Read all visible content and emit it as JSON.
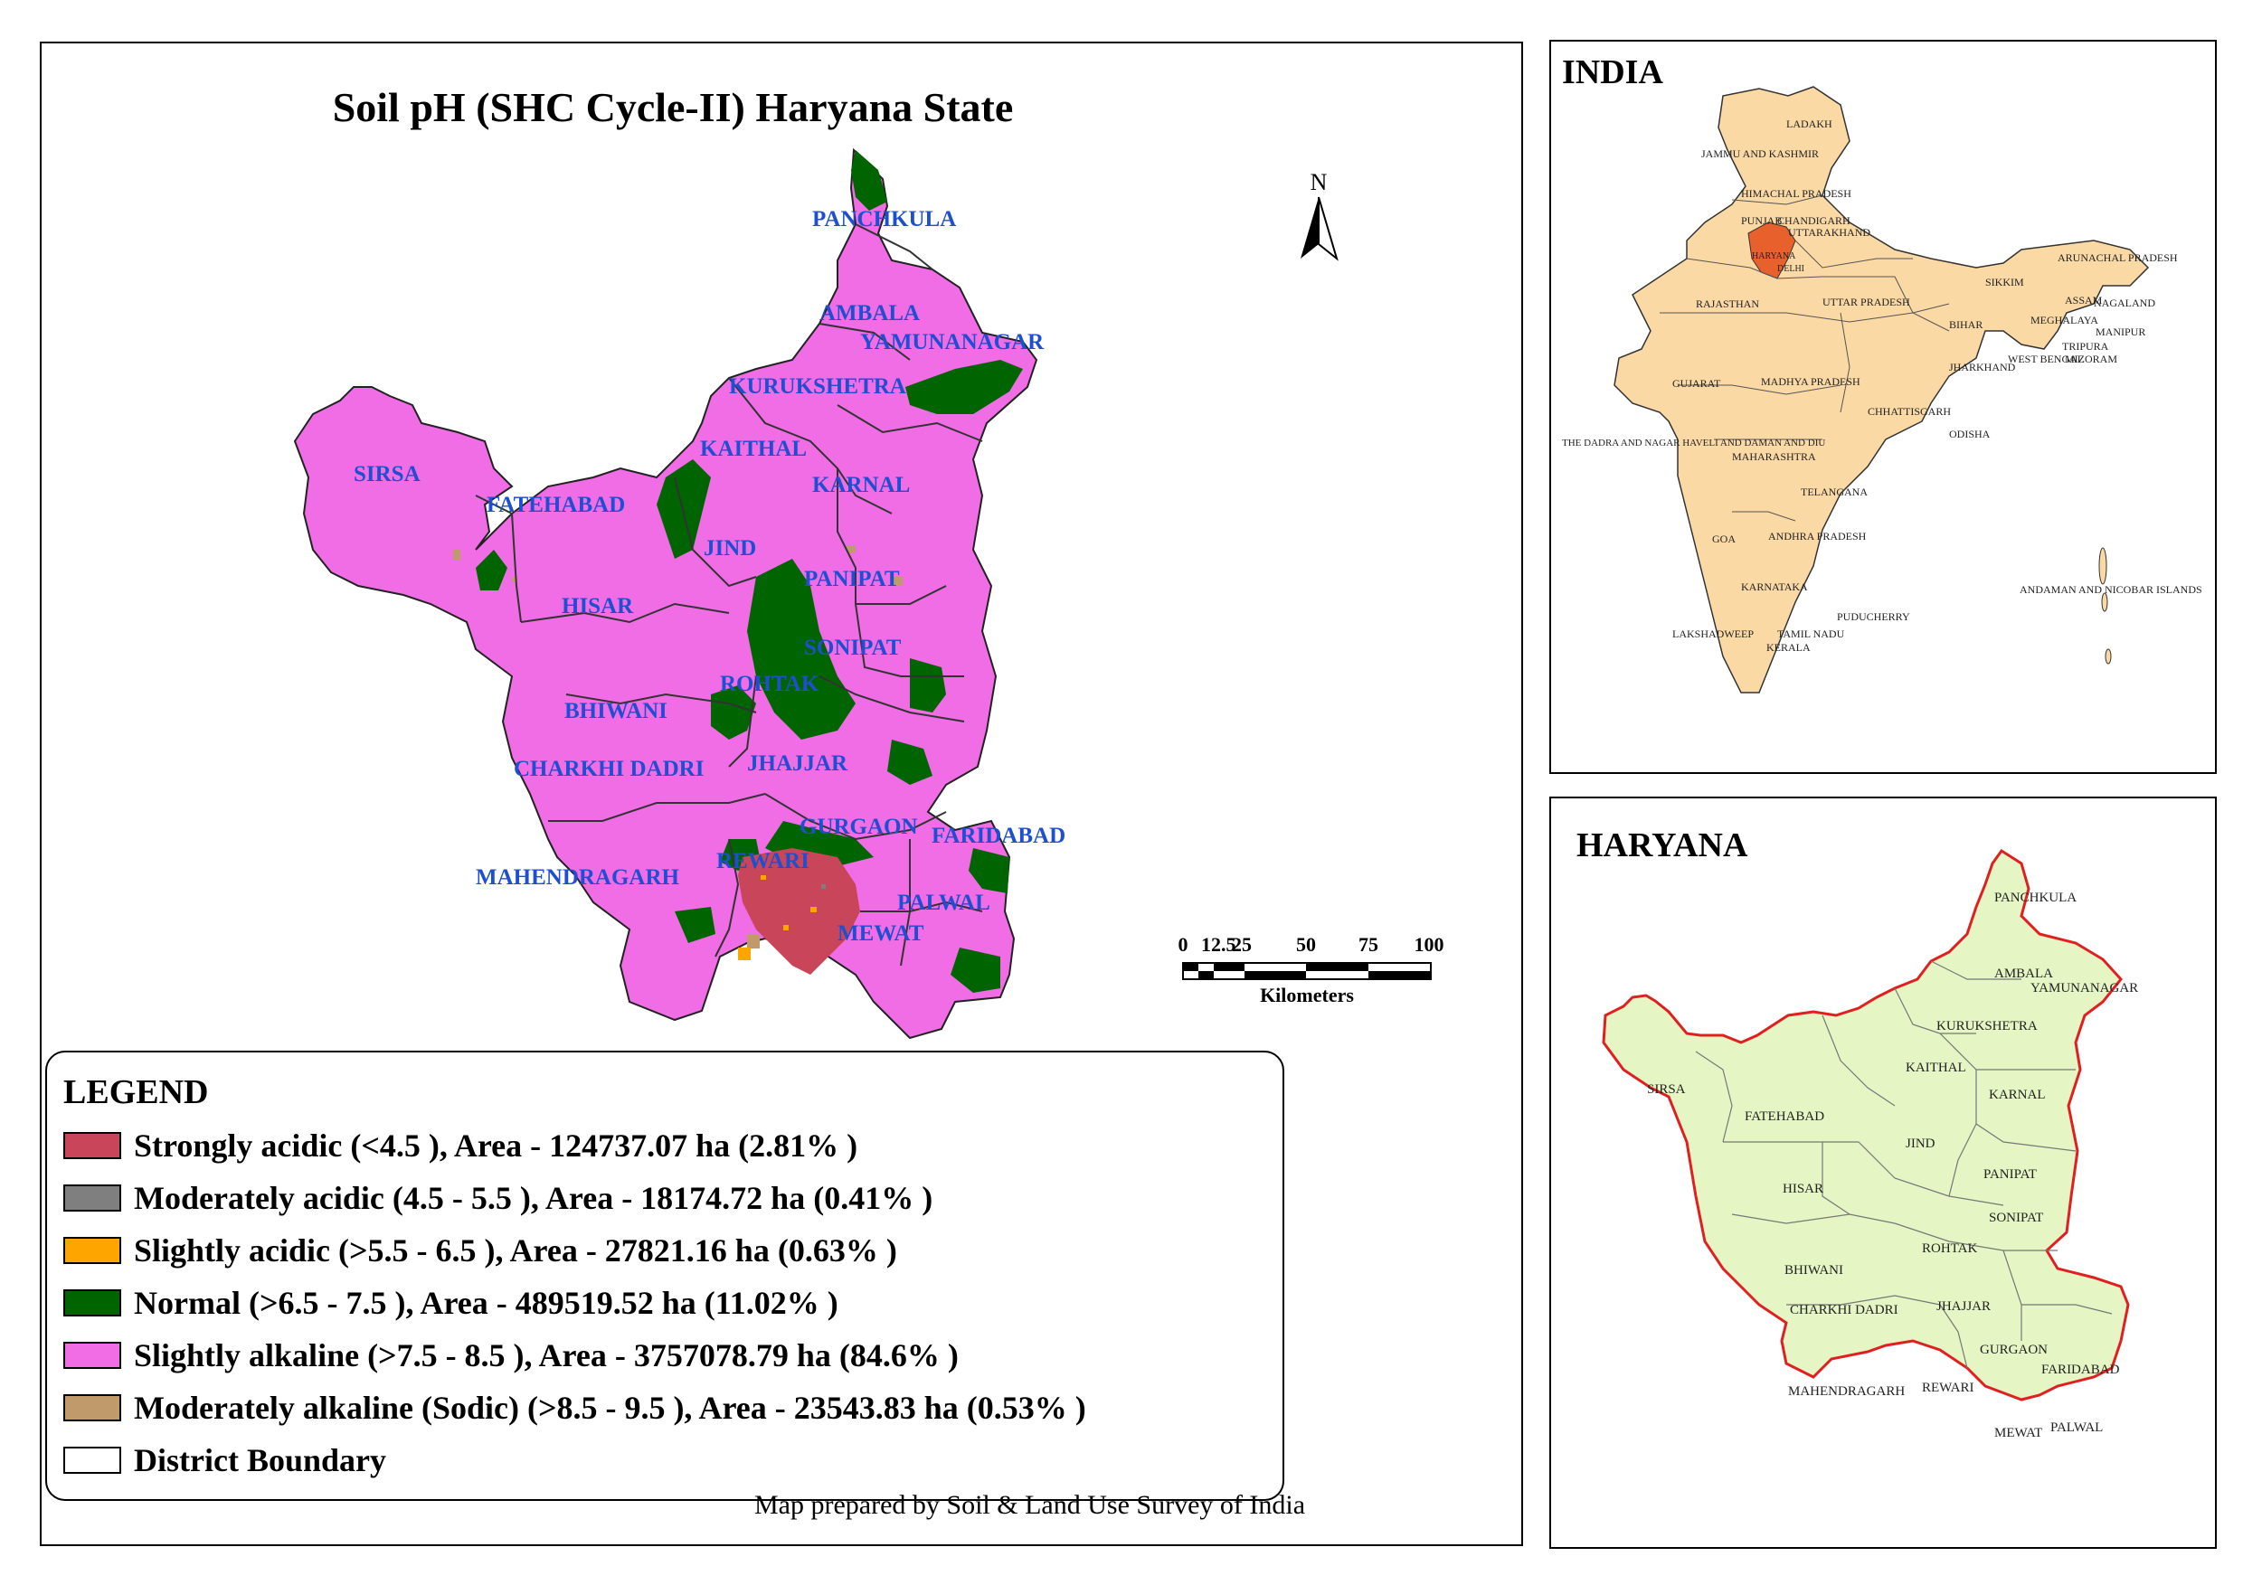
{
  "title": "Soil pH (SHC Cycle-II) Haryana State",
  "north_label": "N",
  "scale_bar": {
    "ticks": [
      "0",
      "12.5",
      "25",
      "50",
      "75",
      "100"
    ],
    "unit": "Kilometers"
  },
  "districts_main": [
    {
      "key": "panchkula",
      "label": "PANCHKULA"
    },
    {
      "key": "ambala",
      "label": "AMBALA"
    },
    {
      "key": "yamunanagar",
      "label": "YAMUNANAGAR"
    },
    {
      "key": "kurukshetra",
      "label": "KURUKSHETRA"
    },
    {
      "key": "kaithal",
      "label": "KAITHAL"
    },
    {
      "key": "karnal",
      "label": "KARNAL"
    },
    {
      "key": "sirsa",
      "label": "SIRSA"
    },
    {
      "key": "fatehabad",
      "label": "FATEHABAD"
    },
    {
      "key": "jind",
      "label": "JIND"
    },
    {
      "key": "panipat",
      "label": "PANIPAT"
    },
    {
      "key": "hisar",
      "label": "HISAR"
    },
    {
      "key": "sonipat",
      "label": "SONIPAT"
    },
    {
      "key": "rohtak",
      "label": "ROHTAK"
    },
    {
      "key": "bhiwani",
      "label": "BHIWANI"
    },
    {
      "key": "charkhi-dadri",
      "label": "CHARKHI DADRI"
    },
    {
      "key": "jhajjar",
      "label": "JHAJJAR"
    },
    {
      "key": "gurgaon",
      "label": "GURGAON"
    },
    {
      "key": "faridabad",
      "label": "FARIDABAD"
    },
    {
      "key": "mahendragarh",
      "label": "MAHENDRAGARH"
    },
    {
      "key": "rewari",
      "label": "REWARI"
    },
    {
      "key": "palwal",
      "label": "PALWAL"
    },
    {
      "key": "mewat",
      "label": "MEWAT"
    }
  ],
  "legend": {
    "title": "LEGEND",
    "items": [
      {
        "label": "Strongly acidic  (<4.5 ), Area - 124737.07  ha (2.81% )",
        "color": "#c8455a"
      },
      {
        "label": "Moderately acidic  (4.5 - 5.5 ), Area - 18174.72  ha (0.41% )",
        "color": "#7f7f7f"
      },
      {
        "label": "Slightly acidic  (>5.5 - 6.5 ), Area - 27821.16  ha (0.63% )",
        "color": "#ffa500"
      },
      {
        "label": "Normal  (>6.5 - 7.5 ), Area - 489519.52  ha (11.02% )",
        "color": "#006400"
      },
      {
        "label": "Slightly alkaline  (>7.5 - 8.5 ), Area - 3757078.79  ha (84.6% )",
        "color": "#f06de6"
      },
      {
        "label": "Moderately alkaline (Sodic)  (>8.5 - 9.5 ), Area - 23543.83  ha (0.53% )",
        "color": "#c09a6b"
      },
      {
        "label": "District Boundary",
        "color": "#ffffff"
      }
    ]
  },
  "credit": "Map prepared by Soil & Land Use Survey of India",
  "india_inset": {
    "title": "INDIA",
    "state_fill": "#fbd9a5",
    "highlight_fill": "#e8602c",
    "states": [
      {
        "key": "ladakh",
        "label": "LADAKH"
      },
      {
        "key": "jammu-kashmir",
        "label": "JAMMU AND KASHMIR"
      },
      {
        "key": "himachal",
        "label": "HIMACHAL PRADESH"
      },
      {
        "key": "punjab",
        "label": "PUNJAB"
      },
      {
        "key": "chandigarh",
        "label": "CHANDIGARH"
      },
      {
        "key": "uttarakhand",
        "label": "UTTARAKHAND"
      },
      {
        "key": "haryana",
        "label": "HARYANA"
      },
      {
        "key": "delhi",
        "label": "DELHI"
      },
      {
        "key": "rajasthan",
        "label": "RAJASTHAN"
      },
      {
        "key": "uttar-pradesh",
        "label": "UTTAR PRADESH"
      },
      {
        "key": "sikkim",
        "label": "SIKKIM"
      },
      {
        "key": "arunachal",
        "label": "ARUNACHAL PRADESH"
      },
      {
        "key": "assam",
        "label": "ASSAM"
      },
      {
        "key": "nagaland",
        "label": "NAGALAND"
      },
      {
        "key": "meghalaya",
        "label": "MEGHALAYA"
      },
      {
        "key": "manipur",
        "label": "MANIPUR"
      },
      {
        "key": "bihar",
        "label": "BIHAR"
      },
      {
        "key": "tripura",
        "label": "TRIPURA"
      },
      {
        "key": "mizoram",
        "label": "MIZORAM"
      },
      {
        "key": "west-bengal",
        "label": "WEST BENGAL"
      },
      {
        "key": "jharkhand",
        "label": "JHARKHAND"
      },
      {
        "key": "gujarat",
        "label": "GUJARAT"
      },
      {
        "key": "madhya-pradesh",
        "label": "MADHYA PRADESH"
      },
      {
        "key": "chhattisgarh",
        "label": "CHHATTISGARH"
      },
      {
        "key": "dadra",
        "label": "THE DADRA AND NAGAR HAVELI AND DAMAN AND DIU"
      },
      {
        "key": "odisha",
        "label": "ODISHA"
      },
      {
        "key": "maharashtra",
        "label": "MAHARASHTRA"
      },
      {
        "key": "telangana",
        "label": "TELANGANA"
      },
      {
        "key": "goa",
        "label": "GOA"
      },
      {
        "key": "andhra",
        "label": "ANDHRA PRADESH"
      },
      {
        "key": "karnataka",
        "label": "KARNATAKA"
      },
      {
        "key": "andaman",
        "label": "ANDAMAN AND NICOBAR ISLANDS"
      },
      {
        "key": "puducherry",
        "label": "PUDUCHERRY"
      },
      {
        "key": "lakshadweep",
        "label": "LAKSHADWEEP"
      },
      {
        "key": "tamil-nadu",
        "label": "TAMIL NADU"
      },
      {
        "key": "kerala",
        "label": "KERALA"
      }
    ]
  },
  "haryana_inset": {
    "title": "HARYANA",
    "fill": "#e5f5c4",
    "boundary_color": "#e02020",
    "districts": [
      {
        "key": "panchkula",
        "label": "PANCHKULA"
      },
      {
        "key": "ambala",
        "label": "AMBALA"
      },
      {
        "key": "yamunanagar",
        "label": "YAMUNANAGAR"
      },
      {
        "key": "kurukshetra",
        "label": "KURUKSHETRA"
      },
      {
        "key": "kaithal",
        "label": "KAITHAL"
      },
      {
        "key": "sirsa",
        "label": "SIRSA"
      },
      {
        "key": "karnal",
        "label": "KARNAL"
      },
      {
        "key": "fatehabad",
        "label": "FATEHABAD"
      },
      {
        "key": "jind",
        "label": "JIND"
      },
      {
        "key": "panipat",
        "label": "PANIPAT"
      },
      {
        "key": "hisar",
        "label": "HISAR"
      },
      {
        "key": "sonipat",
        "label": "SONIPAT"
      },
      {
        "key": "rohtak",
        "label": "ROHTAK"
      },
      {
        "key": "bhiwani",
        "label": "BHIWANI"
      },
      {
        "key": "charkhi-dadri",
        "label": "CHARKHI DADRI"
      },
      {
        "key": "jhajjar",
        "label": "JHAJJAR"
      },
      {
        "key": "gurgaon",
        "label": "GURGAON"
      },
      {
        "key": "faridabad",
        "label": "FARIDABAD"
      },
      {
        "key": "mahendragarh",
        "label": "MAHENDRAGARH"
      },
      {
        "key": "rewari",
        "label": "REWARI"
      },
      {
        "key": "mewat",
        "label": "MEWAT"
      },
      {
        "key": "palwal",
        "label": "PALWAL"
      }
    ]
  }
}
